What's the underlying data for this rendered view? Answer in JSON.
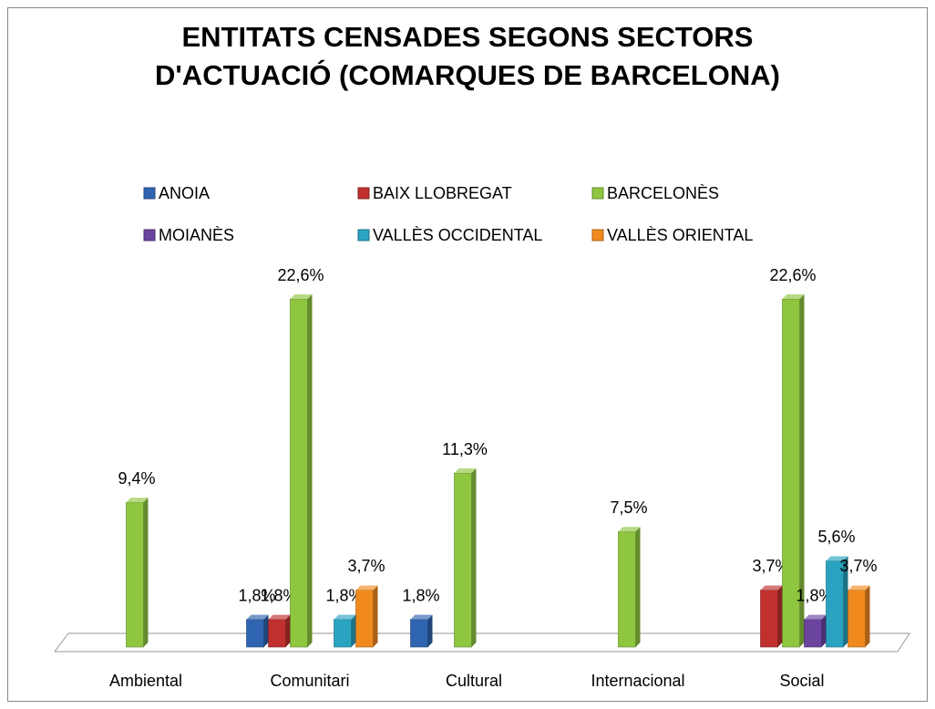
{
  "chart_data": {
    "type": "bar3d",
    "title": "ENTITATS CENSADES SEGONS SECTORS D'ACTUACIÓ (COMARQUES DE BARCELONA)",
    "categories": [
      "Ambiental",
      "Comunitari",
      "Cultural",
      "Internacional",
      "Social"
    ],
    "legend": "top",
    "series": [
      {
        "name": "ANOIA",
        "color": "#2e64b0",
        "values": [
          null,
          1.8,
          1.8,
          null,
          null
        ],
        "value_labels": [
          null,
          "1,8%",
          "1,8%",
          null,
          null
        ]
      },
      {
        "name": "BAIX LLOBREGAT",
        "color": "#c0302f",
        "values": [
          null,
          1.8,
          null,
          null,
          3.7
        ],
        "value_labels": [
          null,
          "1,8%",
          null,
          null,
          "3,7%"
        ]
      },
      {
        "name": "BARCELONÈS",
        "color": "#8fc640",
        "values": [
          9.4,
          22.6,
          11.3,
          7.5,
          22.6
        ],
        "value_labels": [
          "9,4%",
          "22,6%",
          "11,3%",
          "7,5%",
          "22,6%"
        ]
      },
      {
        "name": "MOIANÈS",
        "color": "#6b44a0",
        "values": [
          null,
          null,
          null,
          null,
          1.8
        ],
        "value_labels": [
          null,
          null,
          null,
          null,
          "1,8%"
        ]
      },
      {
        "name": "VALLÈS OCCIDENTAL",
        "color": "#2aa3c0",
        "values": [
          null,
          1.8,
          null,
          null,
          5.6
        ],
        "value_labels": [
          null,
          "1,8%",
          null,
          null,
          "5,6%"
        ]
      },
      {
        "name": "VALLÈS ORIENTAL",
        "color": "#f08a1e",
        "values": [
          null,
          3.7,
          null,
          null,
          3.7
        ],
        "value_labels": [
          null,
          "3,7%",
          null,
          null,
          "3,7%"
        ]
      }
    ]
  }
}
